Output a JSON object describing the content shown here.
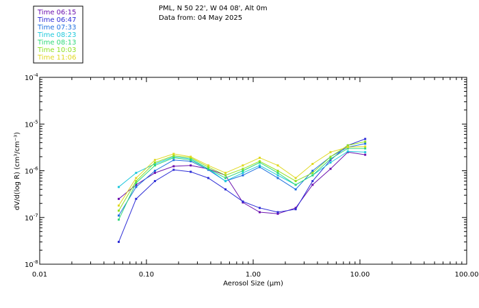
{
  "chart_data": {
    "type": "line",
    "title_line1": "PML, N 50 22', W 04 08', Alt 0m",
    "title_line2": "Data from: 04 May 2025",
    "xlabel": "Aerosol Size (µm)",
    "ylabel": "dV/d(log R) (cm³/cm⁻³)",
    "x_scale": "log",
    "y_scale": "log",
    "xlim": [
      0.01,
      100.0
    ],
    "ylim": [
      1e-08,
      0.0001
    ],
    "x_ticks": [
      {
        "value": 0.01,
        "label": "0.01"
      },
      {
        "value": 0.1,
        "label": "0.10"
      },
      {
        "value": 1.0,
        "label": "1.00"
      },
      {
        "value": 10.0,
        "label": "10.00"
      },
      {
        "value": 100.0,
        "label": "100.00"
      }
    ],
    "y_ticks": [
      {
        "value": 1e-08,
        "mantissa": "10",
        "exp": "-8"
      },
      {
        "value": 1e-07,
        "mantissa": "10",
        "exp": "-7"
      },
      {
        "value": 1e-06,
        "mantissa": "10",
        "exp": "-6"
      },
      {
        "value": 1e-05,
        "mantissa": "10",
        "exp": "-5"
      },
      {
        "value": 0.0001,
        "mantissa": "10",
        "exp": "-4"
      }
    ],
    "legend_position": "top-left",
    "x": [
      0.055,
      0.08,
      0.12,
      0.18,
      0.26,
      0.38,
      0.55,
      0.8,
      1.15,
      1.7,
      2.5,
      3.6,
      5.3,
      7.7,
      11.2
    ],
    "series": [
      {
        "name": "Time 06:15",
        "color": "#6a0dad",
        "values": [
          2.5e-07,
          5e-07,
          9e-07,
          1.25e-06,
          1.3e-06,
          1.1e-06,
          8e-07,
          2.1e-07,
          1.3e-07,
          1.2e-07,
          1.6e-07,
          5e-07,
          1.1e-06,
          2.5e-06,
          2.2e-06
        ]
      },
      {
        "name": "Time 06:47",
        "color": "#2b2bd6",
        "values": [
          3e-08,
          2.5e-07,
          6e-07,
          1.05e-06,
          9.5e-07,
          7e-07,
          4e-07,
          2.2e-07,
          1.6e-07,
          1.3e-07,
          1.5e-07,
          6e-07,
          1.7e-06,
          3.5e-06,
          4.8e-06
        ]
      },
      {
        "name": "Time 07:33",
        "color": "#1e6fe0",
        "values": [
          1.1e-07,
          4.5e-07,
          1e-06,
          1.7e-06,
          1.6e-06,
          1.05e-06,
          6e-07,
          8e-07,
          1.2e-06,
          7e-07,
          4e-07,
          1e-06,
          2e-06,
          3.2e-06,
          3.8e-06
        ]
      },
      {
        "name": "Time 08:23",
        "color": "#1fc8dc",
        "values": [
          4.5e-07,
          9e-07,
          1.4e-06,
          2e-06,
          1.8e-06,
          1.1e-06,
          6e-07,
          9e-07,
          1.3e-06,
          8e-07,
          5e-07,
          8e-07,
          1.5e-06,
          2.6e-06,
          2.5e-06
        ]
      },
      {
        "name": "Time 08:13",
        "color": "#2ed87a",
        "values": [
          9e-08,
          5.5e-07,
          1.3e-06,
          1.9e-06,
          1.7e-06,
          1.1e-06,
          7e-07,
          1e-06,
          1.5e-06,
          9e-07,
          5e-07,
          8e-07,
          1.8e-06,
          3e-06,
          3e-06
        ]
      },
      {
        "name": "Time 10:03",
        "color": "#8ee020",
        "values": [
          1.4e-07,
          6e-07,
          1.5e-06,
          2.1e-06,
          1.9e-06,
          1.2e-06,
          8e-07,
          1.1e-06,
          1.6e-06,
          1e-06,
          6e-07,
          9e-07,
          2e-06,
          3.5e-06,
          4.2e-06
        ]
      },
      {
        "name": "Time 11:06",
        "color": "#e0d820",
        "values": [
          1.8e-07,
          7e-07,
          1.7e-06,
          2.3e-06,
          2e-06,
          1.3e-06,
          9e-07,
          1.3e-06,
          1.9e-06,
          1.3e-06,
          7e-07,
          1.4e-06,
          2.5e-06,
          3.2e-06,
          3.3e-06
        ]
      }
    ]
  }
}
